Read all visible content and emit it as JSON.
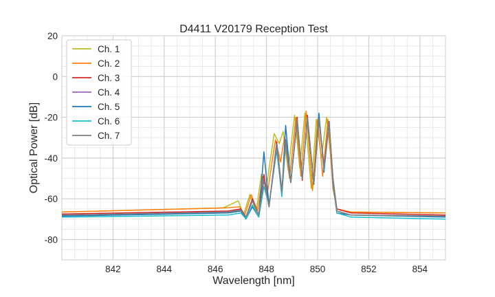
{
  "chart_data": {
    "type": "line",
    "title": "D4411 V20179 Reception Test",
    "xlabel": "Wavelength [nm]",
    "ylabel": "Optical Power [dB]",
    "xlim": [
      840.0,
      855.0
    ],
    "ylim": [
      -90,
      20
    ],
    "xticks": [
      842,
      844,
      846,
      848,
      850,
      852,
      854
    ],
    "yticks": [
      -80,
      -60,
      -40,
      -20,
      0,
      20
    ],
    "x_minor_step": 0.5,
    "y_minor_step": 5,
    "grid": true,
    "legend_position": "top-left",
    "series": [
      {
        "name": "Ch. 1",
        "color": "#bcbd22",
        "x": [
          840,
          846.3,
          846.9,
          847.1,
          847.35,
          847.6,
          847.8,
          848.0,
          848.3,
          848.5,
          848.65,
          848.85,
          849.1,
          849.3,
          849.5,
          849.75,
          849.95,
          850.15,
          850.35,
          850.6,
          850.75,
          851.3,
          855
        ],
        "y": [
          -66.5,
          -64.5,
          -61,
          -68,
          -58,
          -66,
          -48,
          -54,
          -28,
          -33,
          -27,
          -46,
          -19,
          -45,
          -18,
          -55,
          -21,
          -40,
          -20,
          -50,
          -65,
          -66.5,
          -67
        ]
      },
      {
        "name": "Ch. 2",
        "color": "#ff7f0e",
        "x": [
          840,
          846.4,
          846.95,
          847.15,
          847.4,
          847.65,
          847.85,
          848.05,
          848.35,
          848.55,
          848.7,
          848.9,
          849.15,
          849.35,
          849.55,
          849.8,
          850.0,
          850.2,
          850.4,
          850.6,
          850.75,
          851.3,
          855
        ],
        "y": [
          -66.5,
          -64.5,
          -64,
          -68,
          -58,
          -66,
          -49,
          -56,
          -31,
          -42,
          -30,
          -50,
          -20,
          -49,
          -17,
          -56,
          -21,
          -49,
          -21,
          -55,
          -65,
          -66.5,
          -67
        ]
      },
      {
        "name": "Ch. 3",
        "color": "#d62728",
        "x": [
          840,
          846.5,
          847.0,
          847.2,
          847.45,
          847.7,
          847.9,
          848.1,
          848.4,
          848.6,
          848.75,
          848.95,
          849.2,
          849.4,
          849.6,
          849.85,
          850.05,
          850.25,
          850.45,
          850.6,
          850.75,
          851.3,
          855
        ],
        "y": [
          -67.5,
          -66,
          -65,
          -69,
          -60,
          -68,
          -48,
          -64,
          -32,
          -56,
          -31,
          -52,
          -20,
          -51,
          -19,
          -53,
          -20,
          -44,
          -22,
          -50,
          -65,
          -67,
          -68
        ]
      },
      {
        "name": "Ch. 4",
        "color": "#9467bd",
        "x": [
          840,
          846.5,
          847.0,
          847.2,
          847.45,
          847.7,
          847.9,
          848.1,
          848.4,
          848.6,
          848.75,
          848.95,
          849.2,
          849.4,
          849.6,
          849.85,
          850.05,
          850.25,
          850.45,
          850.6,
          850.75,
          851.3,
          855
        ],
        "y": [
          -68,
          -66.5,
          -66,
          -69,
          -61,
          -68,
          -50,
          -64,
          -33,
          -57,
          -31,
          -52,
          -21,
          -50,
          -20,
          -53,
          -21,
          -45,
          -23,
          -50,
          -66,
          -68,
          -68.5
        ]
      },
      {
        "name": "Ch. 5",
        "color": "#1f77b4",
        "x": [
          840,
          846.5,
          847.0,
          847.2,
          847.45,
          847.7,
          847.9,
          848.1,
          848.4,
          848.6,
          848.75,
          848.95,
          849.2,
          849.4,
          849.6,
          849.85,
          850.05,
          850.25,
          850.45,
          850.6,
          850.75,
          851.3,
          855
        ],
        "y": [
          -68.5,
          -67,
          -66,
          -70,
          -64,
          -69,
          -37,
          -63,
          -36,
          -58,
          -24,
          -52,
          -22,
          -50,
          -20,
          -53,
          -18,
          -47,
          -22,
          -52,
          -67,
          -68,
          -69
        ]
      },
      {
        "name": "Ch. 6",
        "color": "#17becf",
        "x": [
          840,
          846.5,
          847.0,
          847.2,
          847.45,
          847.7,
          847.9,
          848.1,
          848.4,
          848.6,
          848.75,
          848.95,
          849.2,
          849.4,
          849.6,
          849.85,
          850.05,
          850.25,
          850.45,
          850.6,
          850.75,
          851.3,
          855
        ],
        "y": [
          -69,
          -68,
          -67,
          -70,
          -63,
          -69,
          -54,
          -63,
          -35,
          -59,
          -33,
          -52,
          -22,
          -50,
          -21,
          -53,
          -21,
          -46,
          -23,
          -51,
          -67,
          -69,
          -70
        ]
      },
      {
        "name": "Ch. 7",
        "color": "#7f7f7f",
        "x": [
          840,
          846.5,
          847.0,
          847.2,
          847.45,
          847.7,
          847.9,
          848.1,
          848.4,
          848.6,
          848.75,
          848.95,
          849.2,
          849.4,
          849.6,
          849.85,
          850.05,
          850.25,
          850.45,
          850.6,
          850.75,
          851.3,
          855
        ],
        "y": [
          -68,
          -66.5,
          -65.5,
          -69,
          -61,
          -68,
          -51,
          -64,
          -33,
          -57,
          -32,
          -52,
          -21,
          -50,
          -20,
          -53,
          -21,
          -45,
          -23,
          -50,
          -66,
          -68,
          -68.5
        ]
      }
    ]
  }
}
